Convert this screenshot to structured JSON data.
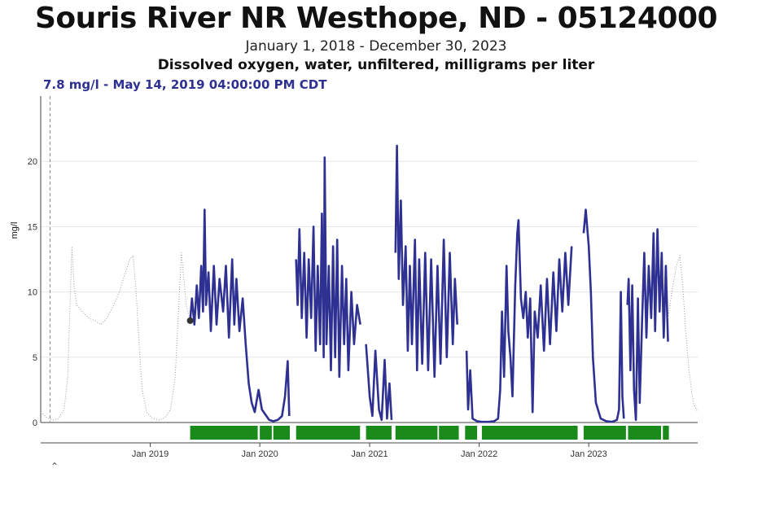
{
  "header": {
    "title": "Souris River NR Westhope, ND - 05124000",
    "date_range": "January 1, 2018 - December 30, 2023",
    "parameter": "Dissolved oxygen, water, unfiltered, milligrams per liter"
  },
  "readout": {
    "text": "7.8 mg/l - May 14, 2019 04:00:00 PM CDT",
    "color": "#2e3192"
  },
  "collapse_icon": "chevron-up-icon",
  "chart_data": {
    "type": "line",
    "ylabel": "mg/l",
    "ylim": [
      0,
      25
    ],
    "yticks": [
      0,
      5,
      10,
      15,
      20
    ],
    "x_range": [
      "2018-01-01",
      "2023-12-30"
    ],
    "xticks": [
      {
        "date": "2019-01-01",
        "label": "Jan 2019"
      },
      {
        "date": "2020-01-01",
        "label": "Jan 2020"
      },
      {
        "date": "2021-01-01",
        "label": "Jan 2021"
      },
      {
        "date": "2022-01-01",
        "label": "Jan 2022"
      },
      {
        "date": "2023-01-01",
        "label": "Jan 2023"
      }
    ],
    "grid": true,
    "colors": {
      "series": "#2e3192",
      "median": "#9a9a9a",
      "approved_bar": "#1a8a1a",
      "cursor": "#888888"
    },
    "cursor_date": "2018-02-01",
    "highlight_point": {
      "date": "2019-05-14",
      "value": 7.8
    },
    "series": [
      {
        "values": [
          [
            "2019-05-14",
            7.8
          ],
          [
            "2019-05-20",
            9.5
          ],
          [
            "2019-05-28",
            7.5
          ],
          [
            "2019-06-05",
            10.5
          ],
          [
            "2019-06-12",
            8.0
          ],
          [
            "2019-06-20",
            12.0
          ],
          [
            "2019-06-26",
            8.5
          ],
          [
            "2019-07-01",
            16.3
          ],
          [
            "2019-07-06",
            9.0
          ],
          [
            "2019-07-14",
            11.5
          ],
          [
            "2019-07-22",
            7.0
          ],
          [
            "2019-08-01",
            12.0
          ],
          [
            "2019-08-10",
            7.5
          ],
          [
            "2019-08-20",
            11.0
          ],
          [
            "2019-09-01",
            8.5
          ],
          [
            "2019-09-10",
            12.0
          ],
          [
            "2019-09-20",
            6.5
          ],
          [
            "2019-10-01",
            12.5
          ],
          [
            "2019-10-08",
            7.5
          ],
          [
            "2019-10-15",
            11.0
          ],
          [
            "2019-10-25",
            7.0
          ],
          [
            "2019-11-05",
            9.5
          ],
          [
            "2019-11-15",
            6.0
          ],
          [
            "2019-11-25",
            3.0
          ],
          [
            "2019-12-05",
            1.5
          ],
          [
            "2019-12-15",
            0.8
          ],
          [
            "2019-12-28",
            2.5
          ],
          [
            "2020-01-08",
            1.0
          ],
          [
            "2020-01-20",
            0.6
          ],
          [
            "2020-02-01",
            0.2
          ],
          [
            "2020-02-15",
            0.1
          ],
          [
            "2020-03-01",
            0.2
          ],
          [
            "2020-03-15",
            0.5
          ],
          [
            "2020-03-25",
            2.0
          ],
          [
            "2020-04-03",
            4.7
          ],
          [
            "2020-04-08",
            0.5
          ],
          [
            "2020-04-15",
            null
          ],
          [
            "2020-05-01",
            12.5
          ],
          [
            "2020-05-06",
            9.0
          ],
          [
            "2020-05-12",
            14.8
          ],
          [
            "2020-05-20",
            8.0
          ],
          [
            "2020-05-28",
            13.0
          ],
          [
            "2020-06-05",
            6.5
          ],
          [
            "2020-06-12",
            12.5
          ],
          [
            "2020-06-20",
            8.0
          ],
          [
            "2020-06-28",
            15.0
          ],
          [
            "2020-07-05",
            5.5
          ],
          [
            "2020-07-12",
            12.0
          ],
          [
            "2020-07-20",
            6.0
          ],
          [
            "2020-07-26",
            16.0
          ],
          [
            "2020-08-01",
            5.0
          ],
          [
            "2020-08-04",
            20.3
          ],
          [
            "2020-08-10",
            6.0
          ],
          [
            "2020-08-18",
            12.0
          ],
          [
            "2020-08-25",
            4.0
          ],
          [
            "2020-09-01",
            13.5
          ],
          [
            "2020-09-08",
            5.0
          ],
          [
            "2020-09-15",
            14.0
          ],
          [
            "2020-09-22",
            3.5
          ],
          [
            "2020-10-01",
            12.0
          ],
          [
            "2020-10-08",
            6.0
          ],
          [
            "2020-10-15",
            11.0
          ],
          [
            "2020-10-22",
            4.0
          ],
          [
            "2020-11-01",
            10.0
          ],
          [
            "2020-11-10",
            6.0
          ],
          [
            "2020-11-20",
            9.0
          ],
          [
            "2020-12-01",
            7.5
          ],
          [
            "2020-12-10",
            null
          ],
          [
            "2020-12-20",
            6.0
          ],
          [
            "2021-01-01",
            2.0
          ],
          [
            "2021-01-10",
            0.5
          ],
          [
            "2021-01-20",
            5.5
          ],
          [
            "2021-02-01",
            1.0
          ],
          [
            "2021-02-10",
            0.2
          ],
          [
            "2021-02-20",
            4.8
          ],
          [
            "2021-02-28",
            0.3
          ],
          [
            "2021-03-08",
            3.0
          ],
          [
            "2021-03-15",
            0.2
          ],
          [
            "2021-03-20",
            null
          ],
          [
            "2021-03-28",
            13.0
          ],
          [
            "2021-04-02",
            21.2
          ],
          [
            "2021-04-08",
            11.0
          ],
          [
            "2021-04-15",
            17.0
          ],
          [
            "2021-04-22",
            9.0
          ],
          [
            "2021-05-01",
            13.5
          ],
          [
            "2021-05-08",
            5.5
          ],
          [
            "2021-05-15",
            12.0
          ],
          [
            "2021-05-22",
            6.0
          ],
          [
            "2021-06-01",
            14.0
          ],
          [
            "2021-06-08",
            4.0
          ],
          [
            "2021-06-15",
            12.5
          ],
          [
            "2021-06-25",
            4.5
          ],
          [
            "2021-07-05",
            13.0
          ],
          [
            "2021-07-15",
            4.0
          ],
          [
            "2021-07-25",
            12.5
          ],
          [
            "2021-08-05",
            3.5
          ],
          [
            "2021-08-15",
            12.0
          ],
          [
            "2021-08-25",
            4.5
          ],
          [
            "2021-09-05",
            14.0
          ],
          [
            "2021-09-15",
            5.0
          ],
          [
            "2021-09-25",
            13.0
          ],
          [
            "2021-10-05",
            6.0
          ],
          [
            "2021-10-12",
            11.0
          ],
          [
            "2021-10-20",
            7.5
          ],
          [
            "2021-11-10",
            null
          ],
          [
            "2021-11-20",
            5.5
          ],
          [
            "2021-11-25",
            1.0
          ],
          [
            "2021-12-02",
            4.0
          ],
          [
            "2021-12-10",
            0.3
          ],
          [
            "2021-12-25",
            0.1
          ],
          [
            "2022-01-10",
            0.05
          ],
          [
            "2022-02-01",
            0.05
          ],
          [
            "2022-02-20",
            0.1
          ],
          [
            "2022-03-05",
            0.3
          ],
          [
            "2022-03-12",
            2.5
          ],
          [
            "2022-03-18",
            8.5
          ],
          [
            "2022-03-25",
            3.5
          ],
          [
            "2022-04-02",
            12.0
          ],
          [
            "2022-04-08",
            7.0
          ],
          [
            "2022-04-15",
            5.0
          ],
          [
            "2022-04-22",
            2.0
          ],
          [
            "2022-05-01",
            10.5
          ],
          [
            "2022-05-08",
            14.5
          ],
          [
            "2022-05-12",
            15.5
          ],
          [
            "2022-05-20",
            9.5
          ],
          [
            "2022-05-28",
            8.0
          ],
          [
            "2022-06-05",
            10.0
          ],
          [
            "2022-06-12",
            6.5
          ],
          [
            "2022-06-20",
            9.5
          ],
          [
            "2022-06-28",
            0.8
          ],
          [
            "2022-07-05",
            8.5
          ],
          [
            "2022-07-15",
            6.5
          ],
          [
            "2022-07-25",
            10.5
          ],
          [
            "2022-08-05",
            5.5
          ],
          [
            "2022-08-15",
            11.0
          ],
          [
            "2022-08-25",
            6.0
          ],
          [
            "2022-09-05",
            11.5
          ],
          [
            "2022-09-15",
            7.0
          ],
          [
            "2022-09-25",
            12.5
          ],
          [
            "2022-10-05",
            8.5
          ],
          [
            "2022-10-15",
            13.0
          ],
          [
            "2022-10-25",
            9.0
          ],
          [
            "2022-11-05",
            13.5
          ],
          [
            "2022-12-10",
            null
          ],
          [
            "2022-12-15",
            14.5
          ],
          [
            "2022-12-22",
            16.3
          ],
          [
            "2023-01-01",
            13.5
          ],
          [
            "2023-01-08",
            10.0
          ],
          [
            "2023-01-15",
            5.0
          ],
          [
            "2023-01-25",
            1.5
          ],
          [
            "2023-02-10",
            0.3
          ],
          [
            "2023-03-01",
            0.1
          ],
          [
            "2023-03-20",
            0.05
          ],
          [
            "2023-04-05",
            0.2
          ],
          [
            "2023-04-12",
            1.0
          ],
          [
            "2023-04-18",
            10.0
          ],
          [
            "2023-04-23",
            2.0
          ],
          [
            "2023-04-28",
            0.3
          ],
          [
            "2023-05-05",
            null
          ],
          [
            "2023-05-10",
            9.0
          ],
          [
            "2023-05-14",
            11.0
          ],
          [
            "2023-05-20",
            4.0
          ],
          [
            "2023-05-26",
            10.5
          ],
          [
            "2023-06-01",
            2.5
          ],
          [
            "2023-06-07",
            0.2
          ],
          [
            "2023-06-14",
            9.5
          ],
          [
            "2023-06-20",
            1.5
          ],
          [
            "2023-06-28",
            8.0
          ],
          [
            "2023-07-05",
            13.0
          ],
          [
            "2023-07-12",
            6.5
          ],
          [
            "2023-07-20",
            12.0
          ],
          [
            "2023-07-28",
            8.0
          ],
          [
            "2023-08-05",
            14.5
          ],
          [
            "2023-08-10",
            7.0
          ],
          [
            "2023-08-18",
            14.8
          ],
          [
            "2023-08-25",
            8.5
          ],
          [
            "2023-09-01",
            13.0
          ],
          [
            "2023-09-08",
            6.5
          ],
          [
            "2023-09-15",
            12.0
          ],
          [
            "2023-09-22",
            6.2
          ]
        ]
      },
      {
        "values": [
          [
            "2018-01-01",
            0.8
          ],
          [
            "2018-01-20",
            0.4
          ],
          [
            "2018-02-10",
            0.2
          ],
          [
            "2018-03-01",
            0.3
          ],
          [
            "2018-03-20",
            1.0
          ],
          [
            "2018-04-01",
            3.5
          ],
          [
            "2018-04-08",
            8.5
          ],
          [
            "2018-04-15",
            13.5
          ],
          [
            "2018-04-22",
            10.5
          ],
          [
            "2018-05-01",
            9.0
          ],
          [
            "2018-05-20",
            8.5
          ],
          [
            "2018-06-10",
            8.0
          ],
          [
            "2018-07-01",
            7.8
          ],
          [
            "2018-07-20",
            7.5
          ],
          [
            "2018-08-10",
            8.0
          ],
          [
            "2018-09-01",
            9.0
          ],
          [
            "2018-09-20",
            10.0
          ],
          [
            "2018-10-10",
            11.5
          ],
          [
            "2018-10-25",
            12.5
          ],
          [
            "2018-11-05",
            12.8
          ],
          [
            "2018-11-15",
            10.0
          ],
          [
            "2018-11-25",
            6.0
          ],
          [
            "2018-12-05",
            2.5
          ],
          [
            "2018-12-20",
            0.8
          ],
          [
            "2019-01-10",
            0.3
          ],
          [
            "2019-02-01",
            0.2
          ],
          [
            "2019-02-20",
            0.4
          ],
          [
            "2019-03-10",
            1.0
          ],
          [
            "2019-03-25",
            3.5
          ],
          [
            "2019-04-05",
            8.5
          ],
          [
            "2019-04-15",
            13.0
          ],
          [
            "2019-05-01",
            9.0
          ],
          [
            "2019-05-14",
            7.8
          ]
        ]
      },
      {
        "values": [
          [
            "2023-09-22",
            8.0
          ],
          [
            "2023-10-05",
            10.0
          ],
          [
            "2023-10-20",
            12.0
          ],
          [
            "2023-11-01",
            12.8
          ],
          [
            "2023-11-10",
            10.5
          ],
          [
            "2023-11-20",
            7.0
          ],
          [
            "2023-12-01",
            4.0
          ],
          [
            "2023-12-15",
            1.5
          ],
          [
            "2023-12-30",
            0.8
          ]
        ]
      }
    ],
    "approval_segments": [
      [
        "2019-05-14",
        "2019-12-25"
      ],
      [
        "2020-01-01",
        "2020-02-10"
      ],
      [
        "2020-02-15",
        "2020-04-10"
      ],
      [
        "2020-05-01",
        "2020-11-30"
      ],
      [
        "2020-12-20",
        "2021-03-15"
      ],
      [
        "2021-03-28",
        "2021-08-15"
      ],
      [
        "2021-08-20",
        "2021-10-25"
      ],
      [
        "2021-11-15",
        "2021-12-25"
      ],
      [
        "2022-01-10",
        "2022-11-25"
      ],
      [
        "2022-12-15",
        "2023-05-05"
      ],
      [
        "2023-05-12",
        "2023-08-30"
      ],
      [
        "2023-09-05",
        "2023-09-25"
      ]
    ]
  }
}
